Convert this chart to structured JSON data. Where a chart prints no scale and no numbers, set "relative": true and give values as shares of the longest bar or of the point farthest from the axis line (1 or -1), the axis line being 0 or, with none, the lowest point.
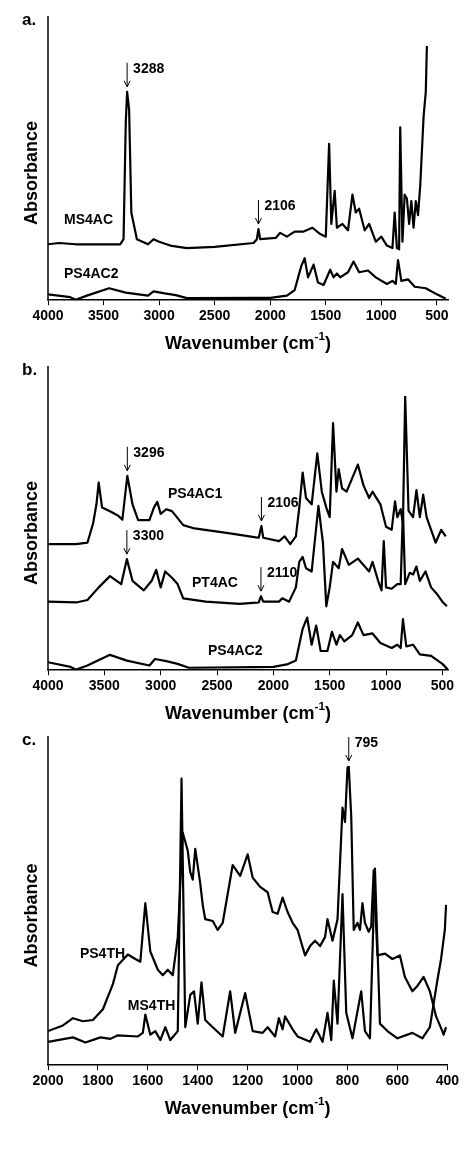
{
  "chart_data": [
    {
      "type": "line",
      "title": "a.",
      "xlabel": "Wavenumber (cm$^{-1}$)",
      "ylabel": "Absorbance",
      "relative": true,
      "xlim": [
        4000,
        400
      ],
      "xticks": [
        4000,
        3500,
        3000,
        2500,
        2000,
        1500,
        1000,
        500
      ],
      "annotations": [
        {
          "text": "3288",
          "x": 3288,
          "y": 0.82
        },
        {
          "text": "2106",
          "x": 2106,
          "y": 0.28
        }
      ],
      "series": [
        {
          "name": "MS4AC",
          "color": "#000000",
          "x": [
            4000,
            3900,
            3750,
            3350,
            3320,
            3300,
            3288,
            3270,
            3250,
            3200,
            3100,
            3050,
            3000,
            2900,
            2750,
            2500,
            2150,
            2120,
            2106,
            2090,
            1950,
            1910,
            1850,
            1780,
            1700,
            1620,
            1550,
            1500,
            1470,
            1450,
            1420,
            1400,
            1350,
            1300,
            1260,
            1230,
            1200,
            1150,
            1110,
            1050,
            1000,
            950,
            900,
            880,
            860,
            840,
            830,
            810,
            790,
            770,
            750,
            730,
            710,
            690,
            670,
            650,
            620,
            600,
            590
          ],
          "values": [
            0.22,
            0.225,
            0.22,
            0.22,
            0.24,
            0.7,
            0.82,
            0.75,
            0.345,
            0.24,
            0.22,
            0.24,
            0.23,
            0.215,
            0.205,
            0.21,
            0.225,
            0.24,
            0.28,
            0.24,
            0.245,
            0.265,
            0.25,
            0.27,
            0.27,
            0.285,
            0.26,
            0.25,
            0.615,
            0.3,
            0.43,
            0.285,
            0.3,
            0.275,
            0.415,
            0.345,
            0.36,
            0.275,
            0.3,
            0.23,
            0.25,
            0.215,
            0.205,
            0.345,
            0.205,
            0.2,
            0.68,
            0.23,
            0.415,
            0.4,
            0.3,
            0.39,
            0.285,
            0.39,
            0.335,
            0.45,
            0.72,
            0.82,
            1
          ]
        },
        {
          "name": "PS4AC2",
          "color": "#000000",
          "x": [
            4000,
            3800,
            3750,
            3650,
            3450,
            3300,
            3100,
            3050,
            2950,
            2850,
            2750,
            2000,
            1850,
            1780,
            1720,
            1690,
            1660,
            1610,
            1570,
            1520,
            1460,
            1430,
            1400,
            1370,
            1300,
            1250,
            1200,
            1120,
            1050,
            950,
            900,
            870,
            850,
            820,
            760,
            700,
            600,
            500,
            420
          ],
          "values": [
            0.023,
            0.012,
            0.002,
            0.018,
            0.047,
            0.03,
            0.018,
            0.035,
            0.027,
            0.02,
            0.008,
            0.009,
            0.018,
            0.04,
            0.135,
            0.165,
            0.09,
            0.14,
            0.07,
            0.06,
            0.12,
            0.09,
            0.105,
            0.09,
            0.11,
            0.152,
            0.11,
            0.117,
            0.09,
            0.064,
            0.076,
            0.064,
            0.158,
            0.076,
            0.082,
            0.053,
            0.047,
            0.023,
            0.006
          ]
        }
      ]
    },
    {
      "type": "line",
      "title": "b.",
      "xlabel": "Wavenumber (cm$^{-1}$)",
      "ylabel": "Absorbance",
      "relative": true,
      "xlim": [
        4000,
        450
      ],
      "xticks": [
        4000,
        3500,
        3000,
        2500,
        2000,
        1500,
        1000,
        500
      ],
      "annotations": [
        {
          "text": "3296",
          "x": 3296,
          "y": 0.709
        },
        {
          "text": "2106",
          "x": 2106,
          "y": 0.526
        },
        {
          "text": "3300",
          "x": 3300,
          "y": 0.405
        },
        {
          "text": "2110",
          "x": 2110,
          "y": 0.27
        }
      ],
      "series": [
        {
          "name": "PS4AC1",
          "color": "#000000",
          "x": [
            4000,
            3750,
            3650,
            3600,
            3570,
            3550,
            3520,
            3450,
            3380,
            3340,
            3296,
            3250,
            3200,
            3100,
            3060,
            3030,
            3000,
            2950,
            2900,
            2860,
            2800,
            2700,
            2400,
            2130,
            2106,
            2090,
            1950,
            1900,
            1850,
            1800,
            1770,
            1740,
            1710,
            1660,
            1610,
            1570,
            1530,
            1500,
            1470,
            1440,
            1420,
            1390,
            1350,
            1250,
            1200,
            1150,
            1120,
            1050,
            1000,
            950,
            920,
            900,
            870,
            850,
            830,
            800,
            760,
            730,
            700,
            670,
            640,
            600,
            560,
            510,
            470
          ],
          "values": [
            0.46,
            0.46,
            0.465,
            0.535,
            0.605,
            0.684,
            0.593,
            0.58,
            0.564,
            0.549,
            0.709,
            0.605,
            0.547,
            0.547,
            0.593,
            0.614,
            0.57,
            0.587,
            0.58,
            0.56,
            0.529,
            0.517,
            0.5,
            0.483,
            0.526,
            0.483,
            0.471,
            0.488,
            0.46,
            0.488,
            0.593,
            0.721,
            0.628,
            0.605,
            0.791,
            0.651,
            0.593,
            0.558,
            0.901,
            0.651,
            0.733,
            0.663,
            0.651,
            0.75,
            0.674,
            0.628,
            0.651,
            0.605,
            0.523,
            0.512,
            0.616,
            0.558,
            0.587,
            0.535,
            1,
            0.581,
            0.558,
            0.657,
            0.558,
            0.64,
            0.558,
            0.512,
            0.465,
            0.512,
            0.488
          ]
        },
        {
          "name": "PT4AC",
          "color": "#000000",
          "x": [
            4000,
            3750,
            3650,
            3550,
            3450,
            3350,
            3300,
            3250,
            3150,
            3080,
            3040,
            3000,
            2960,
            2900,
            2850,
            2800,
            2600,
            2300,
            2130,
            2110,
            2090,
            1950,
            1920,
            1860,
            1800,
            1770,
            1740,
            1710,
            1660,
            1600,
            1560,
            1530,
            1500,
            1470,
            1420,
            1390,
            1330,
            1250,
            1200,
            1150,
            1120,
            1070,
            1040,
            1020,
            1000,
            950,
            900,
            870,
            850,
            830,
            790,
            760,
            730,
            700,
            650,
            600,
            550,
            500,
            460
          ],
          "values": [
            0.25,
            0.247,
            0.256,
            0.302,
            0.343,
            0.314,
            0.405,
            0.326,
            0.291,
            0.326,
            0.366,
            0.302,
            0.36,
            0.337,
            0.314,
            0.262,
            0.25,
            0.242,
            0.247,
            0.27,
            0.25,
            0.25,
            0.262,
            0.25,
            0.302,
            0.395,
            0.413,
            0.372,
            0.36,
            0.599,
            0.465,
            0.233,
            0.302,
            0.395,
            0.372,
            0.442,
            0.384,
            0.407,
            0.384,
            0.36,
            0.395,
            0.326,
            0.291,
            0.471,
            0.302,
            0.297,
            0.314,
            0.314,
            0.581,
            0.314,
            0.355,
            0.349,
            0.378,
            0.326,
            0.36,
            0.302,
            0.279,
            0.25,
            0.233
          ]
        },
        {
          "name": "PS4AC2",
          "color": "#000000",
          "x": [
            4000,
            3800,
            3750,
            3650,
            3450,
            3300,
            3100,
            3050,
            2950,
            2850,
            2750,
            2000,
            1880,
            1800,
            1740,
            1700,
            1660,
            1620,
            1580,
            1520,
            1480,
            1440,
            1410,
            1370,
            1300,
            1250,
            1200,
            1120,
            1050,
            950,
            900,
            870,
            850,
            820,
            760,
            700,
            600,
            500,
            450
          ],
          "values": [
            0.029,
            0.012,
            0.002,
            0.017,
            0.056,
            0.035,
            0.017,
            0.041,
            0.033,
            0.023,
            0.009,
            0.012,
            0.021,
            0.035,
            0.151,
            0.192,
            0.093,
            0.163,
            0.07,
            0.07,
            0.14,
            0.093,
            0.128,
            0.105,
            0.128,
            0.174,
            0.128,
            0.134,
            0.099,
            0.081,
            0.093,
            0.081,
            0.186,
            0.087,
            0.093,
            0.058,
            0.052,
            0.023,
            0.002
          ]
        }
      ]
    },
    {
      "type": "line",
      "title": "c.",
      "xlabel": "Wavenumber (cm$^{-1}$)",
      "ylabel": "Absorbance",
      "relative": true,
      "xlim": [
        2000,
        400
      ],
      "xticks": [
        2000,
        1800,
        1600,
        1400,
        1200,
        1000,
        800,
        600,
        400
      ],
      "annotations": [
        {
          "text": "795",
          "x": 795,
          "y": 1
        }
      ],
      "series": [
        {
          "name": "PS4TH",
          "color": "#000000",
          "x": [
            2000,
            1940,
            1900,
            1860,
            1820,
            1780,
            1740,
            1720,
            1680,
            1650,
            1630,
            1610,
            1590,
            1560,
            1540,
            1520,
            1500,
            1480,
            1460,
            1440,
            1430,
            1420,
            1410,
            1390,
            1380,
            1370,
            1340,
            1320,
            1300,
            1260,
            1230,
            1200,
            1180,
            1150,
            1120,
            1100,
            1080,
            1060,
            1040,
            1020,
            1000,
            970,
            950,
            930,
            910,
            890,
            880,
            870,
            860,
            840,
            820,
            810,
            800,
            795,
            785,
            775,
            760,
            750,
            740,
            730,
            715,
            705,
            695,
            680,
            650,
            620,
            590,
            570,
            540,
            520,
            495,
            470,
            445,
            420,
            415,
            405
          ],
          "values": [
            0.114,
            0.133,
            0.157,
            0.147,
            0.151,
            0.187,
            0.271,
            0.334,
            0.37,
            0.355,
            0.346,
            0.542,
            0.38,
            0.319,
            0.301,
            0.319,
            0.301,
            0.428,
            0.777,
            0.717,
            0.645,
            0.62,
            0.723,
            0.608,
            0.536,
            0.488,
            0.482,
            0.452,
            0.476,
            0.669,
            0.633,
            0.705,
            0.627,
            0.596,
            0.578,
            0.512,
            0.506,
            0.56,
            0.512,
            0.476,
            0.452,
            0.367,
            0.398,
            0.416,
            0.398,
            0.428,
            0.488,
            0.452,
            0.416,
            0.488,
            0.861,
            0.813,
            0.994,
            1,
            0.831,
            0.452,
            0.476,
            0.452,
            0.542,
            0.476,
            0.446,
            0.464,
            0.651,
            0.367,
            0.373,
            0.355,
            0.367,
            0.295,
            0.247,
            0.265,
            0.295,
            0.247,
            0.163,
            0.114,
            0.102,
            0.127
          ]
        },
        {
          "name": "MS4TH",
          "color": "#000000",
          "x": [
            2000,
            1900,
            1850,
            1790,
            1750,
            1720,
            1640,
            1620,
            1610,
            1590,
            1570,
            1550,
            1530,
            1510,
            1480,
            1465,
            1450,
            1430,
            1415,
            1400,
            1385,
            1370,
            1340,
            1300,
            1270,
            1250,
            1210,
            1180,
            1140,
            1120,
            1090,
            1075,
            1060,
            1050,
            1020,
            1000,
            950,
            925,
            900,
            880,
            865,
            855,
            840,
            820,
            805,
            780,
            745,
            730,
            710,
            690,
            670,
            640,
            600,
            540,
            500,
            470,
            440,
            425,
            410,
            405
          ],
          "values": [
            0.078,
            0.093,
            0.076,
            0.093,
            0.088,
            0.1,
            0.096,
            0.108,
            0.169,
            0.102,
            0.114,
            0.084,
            0.127,
            0.084,
            0.114,
            0.958,
            0.127,
            0.235,
            0.247,
            0.139,
            0.277,
            0.151,
            0.127,
            0.096,
            0.247,
            0.108,
            0.241,
            0.114,
            0.108,
            0.127,
            0.096,
            0.157,
            0.12,
            0.163,
            0.12,
            0.096,
            0.078,
            0.12,
            0.078,
            0.175,
            0.084,
            0.283,
            0.139,
            0.572,
            0.175,
            0.09,
            0.247,
            0.114,
            0.09,
            0.657,
            0.139,
            0.114,
            0.09,
            0.108,
            0.09,
            0.127,
            0.283,
            0.355,
            0.452,
            0.536
          ]
        }
      ]
    }
  ]
}
